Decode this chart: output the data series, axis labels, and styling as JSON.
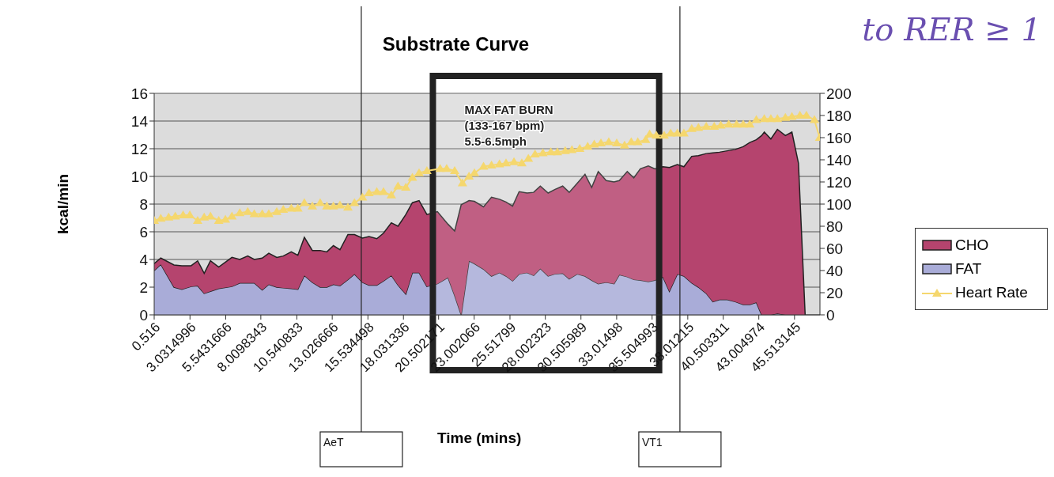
{
  "chart_data": {
    "type": "area",
    "title": "Substrate Curve",
    "xlabel": "Time (mins)",
    "ylabel": "kcal/min",
    "stacked": true,
    "grid": "y",
    "legend": "right",
    "xlim": [
      0.516,
      47.3
    ],
    "xticks": [
      0.516,
      3.0314996,
      5.5431666,
      8.0098343,
      10.540833,
      13.026666,
      15.534498,
      18.031336,
      20.502171,
      23.002066,
      25.51799,
      28.002323,
      30.505989,
      33.01498,
      35.504993,
      38.01215,
      40.503311,
      43.004974,
      45.513145
    ],
    "ylim": [
      0,
      16
    ],
    "yticks": [
      0,
      2,
      4,
      6,
      8,
      10,
      12,
      14,
      16
    ],
    "y2lim": [
      0,
      200
    ],
    "y2ticks": [
      0,
      20,
      40,
      60,
      80,
      100,
      120,
      140,
      160,
      180,
      200
    ],
    "x": [
      0.52,
      0.98,
      1.91,
      2.46,
      3.11,
      3.57,
      4.03,
      4.47,
      5.05,
      5.98,
      6.53,
      7.09,
      7.55,
      8.11,
      8.57,
      9.13,
      9.59,
      10.15,
      10.61,
      11.07,
      11.63,
      12.18,
      12.65,
      13.11,
      13.57,
      14.13,
      14.59,
      15.15,
      15.61,
      16.16,
      16.63,
      17.18,
      17.65,
      18.2,
      18.66,
      19.13,
      19.68,
      20.42,
      21.16,
      21.63,
      22.09,
      22.64,
      23.02,
      23.66,
      24.22,
      24.78,
      25.24,
      25.7,
      26.16,
      26.72,
      27.18,
      27.65,
      28.2,
      28.66,
      29.22,
      29.68,
      30.24,
      30.79,
      31.26,
      31.72,
      32.28,
      32.83,
      33.2,
      33.76,
      34.22,
      34.68,
      35.24,
      35.7,
      36.26,
      36.72,
      37.28,
      37.74,
      38.29,
      38.76,
      39.31,
      39.78,
      40.24,
      40.79,
      41.35,
      41.91,
      42.37,
      42.83,
      43.2,
      43.39,
      43.85,
      44.31,
      44.87,
      45.33,
      45.79,
      46.26
    ],
    "series": [
      {
        "name": "FAT",
        "color": "#a9acd8",
        "values": [
          3.2,
          3.65,
          2.0,
          1.85,
          2.05,
          2.1,
          1.55,
          1.7,
          1.9,
          2.05,
          2.3,
          2.3,
          2.3,
          1.8,
          2.2,
          2.0,
          1.95,
          1.9,
          1.85,
          2.85,
          2.35,
          2.0,
          2.0,
          2.2,
          2.1,
          2.55,
          2.95,
          2.35,
          2.15,
          2.15,
          2.45,
          2.85,
          2.15,
          1.5,
          3.05,
          3.05,
          2.05,
          2.25,
          2.7,
          1.4,
          0,
          3.9,
          3.7,
          3.3,
          2.8,
          3.05,
          2.8,
          2.45,
          2.95,
          3.05,
          2.85,
          3.35,
          2.8,
          2.95,
          3.0,
          2.6,
          2.95,
          2.8,
          2.5,
          2.25,
          2.35,
          2.25,
          2.9,
          2.75,
          2.55,
          2.5,
          2.4,
          2.5,
          2.75,
          1.7,
          2.95,
          2.8,
          2.3,
          2.0,
          1.55,
          0.95,
          1.1,
          1.1,
          0.95,
          0.75,
          0.75,
          0.9,
          0,
          0,
          0,
          0.1,
          0,
          0,
          0,
          0
        ]
      },
      {
        "name": "CHO",
        "color": "#b5446e",
        "values": [
          0.5,
          0.45,
          1.6,
          1.7,
          1.5,
          1.8,
          1.45,
          2.2,
          1.55,
          2.1,
          1.7,
          1.95,
          1.7,
          2.3,
          2.25,
          2.15,
          2.3,
          2.65,
          2.45,
          2.75,
          2.3,
          2.65,
          2.55,
          2.8,
          2.6,
          3.25,
          2.85,
          3.2,
          3.5,
          3.35,
          3.45,
          3.8,
          4.25,
          5.75,
          5.05,
          5.2,
          5.2,
          5.2,
          3.85,
          4.65,
          7.95,
          4.35,
          4.5,
          4.5,
          5.7,
          5.3,
          5.35,
          5.4,
          5.95,
          5.75,
          6.0,
          5.95,
          6.0,
          6.1,
          6.3,
          6.25,
          6.55,
          7.35,
          6.7,
          8.1,
          7.35,
          7.35,
          6.8,
          7.6,
          7.35,
          8.05,
          8.35,
          8.05,
          7.95,
          8.95,
          7.9,
          7.9,
          9.15,
          9.5,
          10.1,
          10.75,
          10.65,
          10.75,
          11.0,
          11.4,
          11.7,
          11.75,
          12.95,
          13.2,
          12.7,
          13.3,
          12.95,
          13.2,
          10.95,
          0
        ]
      },
      {
        "name": "Heart Rate",
        "type": "line",
        "axis": "y2",
        "marker": "triangle",
        "color": "#f5d76e",
        "x": [
          0.52,
          0.98,
          1.53,
          2.0,
          2.55,
          3.02,
          3.57,
          4.03,
          4.47,
          5.05,
          5.52,
          5.98,
          6.53,
          7.09,
          7.55,
          8.11,
          8.57,
          9.13,
          9.59,
          10.15,
          10.61,
          11.07,
          11.63,
          12.18,
          12.65,
          13.11,
          13.57,
          14.13,
          14.59,
          15.15,
          15.61,
          16.16,
          16.63,
          17.18,
          17.65,
          18.2,
          18.66,
          19.13,
          19.68,
          20.61,
          21.07,
          21.63,
          22.18,
          22.64,
          23.02,
          23.66,
          24.22,
          24.78,
          25.24,
          25.8,
          26.35,
          26.81,
          27.28,
          27.83,
          28.39,
          28.85,
          29.4,
          29.87,
          30.42,
          30.98,
          31.44,
          31.91,
          32.46,
          33.02,
          33.57,
          34.04,
          34.5,
          35.05,
          35.33,
          35.8,
          36.35,
          36.81,
          37.28,
          37.74,
          38.29,
          38.76,
          39.31,
          39.87,
          40.33,
          40.89,
          41.44,
          41.91,
          42.37,
          42.83,
          43.39,
          43.85,
          44.31,
          44.87,
          45.33,
          45.89,
          46.35,
          46.91,
          47.28
        ],
        "values": [
          85,
          87,
          88,
          89,
          90,
          90,
          85,
          88,
          89,
          85,
          86,
          89,
          92,
          93,
          91,
          91,
          91,
          93,
          95,
          96,
          96,
          101,
          98,
          101,
          98,
          98,
          99,
          97,
          101,
          106,
          110,
          111,
          111,
          108,
          116,
          115,
          124,
          128,
          130,
          132,
          132,
          130,
          119,
          125,
          128,
          134,
          135,
          136,
          137,
          138,
          137,
          141,
          145,
          146,
          147,
          147,
          148,
          149,
          150,
          152,
          154,
          155,
          156,
          155,
          153,
          156,
          156,
          158,
          163,
          162,
          162,
          164,
          164,
          164,
          168,
          169,
          170,
          170,
          171,
          172,
          172,
          172,
          172,
          176,
          177,
          177,
          177,
          178,
          179,
          180,
          180,
          176,
          160
        ]
      }
    ],
    "ref_lines": [
      {
        "axis": "x",
        "value": 15.07,
        "label": "AeT"
      },
      {
        "axis": "x",
        "value": 37.46,
        "label": "VT1"
      }
    ],
    "bands": [
      {
        "axis": "x",
        "from": 20.1,
        "to": 36.0,
        "label": "MAX FAT BURN\n(133-167 bpm)\n5.5-6.5mph"
      }
    ],
    "annotations": [
      "to RER ≥ 1"
    ]
  }
}
